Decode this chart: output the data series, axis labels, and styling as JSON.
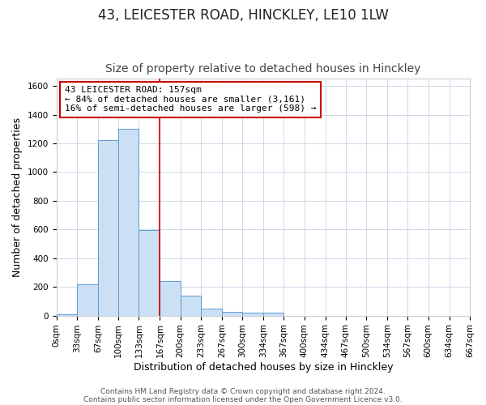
{
  "title": "43, LEICESTER ROAD, HINCKLEY, LE10 1LW",
  "subtitle": "Size of property relative to detached houses in Hinckley",
  "xlabel": "Distribution of detached houses by size in Hinckley",
  "ylabel": "Number of detached properties",
  "footer_line1": "Contains HM Land Registry data © Crown copyright and database right 2024.",
  "footer_line2": "Contains public sector information licensed under the Open Government Licence v3.0.",
  "bin_labels": [
    "0sqm",
    "33sqm",
    "67sqm",
    "100sqm",
    "133sqm",
    "167sqm",
    "200sqm",
    "233sqm",
    "267sqm",
    "300sqm",
    "334sqm",
    "367sqm",
    "400sqm",
    "434sqm",
    "467sqm",
    "500sqm",
    "534sqm",
    "567sqm",
    "600sqm",
    "634sqm",
    "667sqm"
  ],
  "bin_edges": [
    0,
    33,
    67,
    100,
    133,
    167,
    200,
    233,
    267,
    300,
    334,
    367,
    400,
    434,
    467,
    500,
    534,
    567,
    600,
    634,
    667
  ],
  "bar_values": [
    10,
    220,
    1225,
    1300,
    595,
    240,
    140,
    50,
    28,
    20,
    20,
    0,
    0,
    0,
    0,
    0,
    0,
    0,
    0,
    0
  ],
  "bar_facecolor": "#cce0f5",
  "bar_edgecolor": "#5b9bd5",
  "vline_x": 167,
  "vline_color": "#cc0000",
  "annotation_line1": "43 LEICESTER ROAD: 157sqm",
  "annotation_line2": "← 84% of detached houses are smaller (3,161)",
  "annotation_line3": "16% of semi-detached houses are larger (598) →",
  "ylim": [
    0,
    1650
  ],
  "yticks": [
    0,
    200,
    400,
    600,
    800,
    1000,
    1200,
    1400,
    1600
  ],
  "bg_color": "#ffffff",
  "grid_color": "#d0d8e8",
  "title_fontsize": 12,
  "subtitle_fontsize": 10,
  "axis_label_fontsize": 9,
  "tick_fontsize": 7.5,
  "annotation_fontsize": 8,
  "footer_fontsize": 6.5
}
